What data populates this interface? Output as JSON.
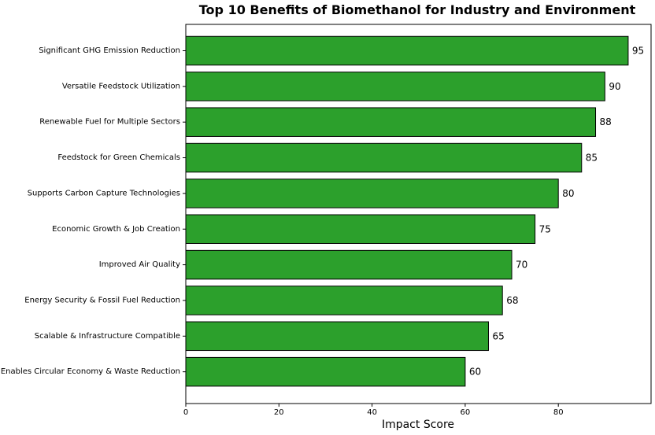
{
  "chart_data": {
    "type": "bar",
    "orientation": "horizontal",
    "title": "Top 10 Benefits of Biomethanol for Industry and Environment",
    "xlabel": "Impact Score",
    "ylabel": "",
    "categories": [
      "Significant GHG Emission Reduction",
      "Versatile Feedstock Utilization",
      "Renewable Fuel for Multiple Sectors",
      "Feedstock for Green Chemicals",
      "Supports Carbon Capture Technologies",
      "Economic Growth & Job Creation",
      "Improved Air Quality",
      "Energy Security & Fossil Fuel Reduction",
      "Scalable & Infrastructure Compatible",
      "Enables Circular Economy & Waste Reduction"
    ],
    "values": [
      95,
      90,
      88,
      85,
      80,
      75,
      70,
      68,
      65,
      60
    ],
    "xlim": [
      0,
      100
    ],
    "xticks": [
      "0",
      "20",
      "40",
      "60",
      "80"
    ],
    "bar_color": "#2ca02c",
    "edge_color": "#000000",
    "grid": false,
    "legend": "none"
  }
}
